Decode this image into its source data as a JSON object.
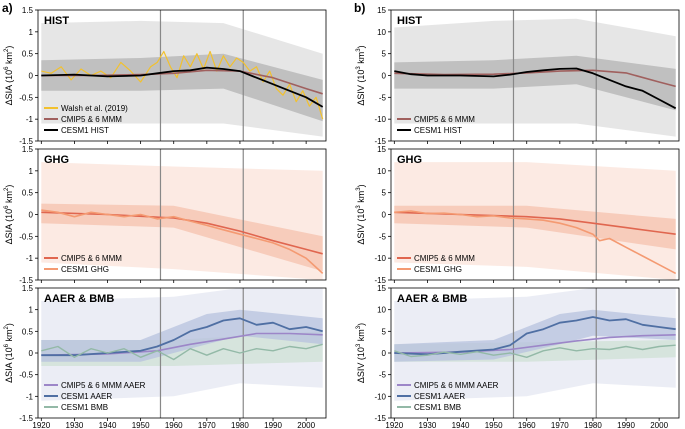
{
  "chart_data": {
    "type": "line",
    "column_labels": [
      "a)",
      "b)"
    ],
    "x_ticks": [
      1920,
      1930,
      1940,
      1950,
      1960,
      1970,
      1980,
      1990,
      2000
    ],
    "xlim": [
      1919,
      2006
    ],
    "vlines": [
      1956,
      1981
    ],
    "colors": {
      "walsh": "#f2c12e",
      "cmip_hist": "#a0605e",
      "cesm_hist": "#000000",
      "band_hist_dark": "#b3b3b3",
      "band_hist_light": "#dedede",
      "ghg_cmip": "#e0664f",
      "ghg_cesm": "#f49a72",
      "band_ghg_dark": "#f6c1ad",
      "band_ghg_light": "#fbe3da",
      "aer_cmip": "#9c86c8",
      "aer_cesm": "#4f6fa3",
      "bmb_cesm": "#93b9a7",
      "band_aer_dark": "#b7c2dd",
      "band_aer_light": "#e4e7f1",
      "band_bmb": "#cfe0d4",
      "vline": "#888888"
    },
    "columns": [
      {
        "ylabel_main": "ΔSIA",
        "units_base": "(10",
        "units_exp": "6",
        "units_unit": " km",
        "units_exp2": "2",
        "units_close": ")",
        "ylim": [
          -1.5,
          1.5
        ],
        "y_ticks": [
          -1.5,
          -1,
          -0.5,
          0,
          0.5,
          1,
          1.5
        ],
        "y_tick_labels": [
          "-1.5",
          "-1",
          "-0.5",
          "0",
          "0.5",
          "1",
          "1.5"
        ]
      },
      {
        "ylabel_main": "ΔSIV",
        "units_base": "(10",
        "units_exp": "3",
        "units_unit": " km",
        "units_exp2": "3",
        "units_close": ")",
        "ylim": [
          -15,
          15
        ],
        "y_ticks": [
          -15,
          -10,
          -5,
          0,
          5,
          10,
          15
        ],
        "y_tick_labels": [
          "-15",
          "-10",
          "-5",
          "0",
          "5",
          "10",
          "15"
        ]
      }
    ],
    "panels": [
      {
        "col": 0,
        "row": 0,
        "title": "HIST",
        "bands": [
          {
            "color": "band_hist_light",
            "x": [
              1920,
              1950,
              1975,
              2005
            ],
            "lower": [
              -1.1,
              -1.1,
              -1.1,
              -1.4
            ],
            "upper": [
              1.2,
              1.25,
              1.2,
              0.5
            ]
          },
          {
            "color": "band_hist_dark",
            "x": [
              1920,
              1950,
              1975,
              2005
            ],
            "lower": [
              -0.35,
              -0.35,
              -0.3,
              -1.05
            ],
            "upper": [
              0.35,
              0.4,
              0.5,
              -0.1
            ]
          }
        ],
        "series": [
          {
            "name": "Walsh et al. (2019)",
            "color": "walsh",
            "width": 1.2,
            "x": [
              1920,
              1923,
              1926,
              1929,
              1932,
              1935,
              1938,
              1941,
              1944,
              1947,
              1950,
              1953,
              1955,
              1957,
              1959,
              1961,
              1963,
              1965,
              1967,
              1969,
              1971,
              1973,
              1975,
              1977,
              1979,
              1981,
              1983,
              1985,
              1987,
              1989,
              1991,
              1993,
              1995,
              1997,
              1999,
              2001,
              2003,
              2005
            ],
            "y": [
              0.1,
              0.05,
              0.2,
              -0.1,
              0.15,
              0.0,
              0.1,
              -0.05,
              0.3,
              0.1,
              -0.15,
              0.2,
              0.3,
              0.55,
              0.2,
              -0.05,
              0.45,
              0.2,
              0.5,
              0.15,
              0.55,
              0.1,
              0.45,
              0.2,
              0.4,
              0.3,
              0.1,
              0.2,
              -0.15,
              0.1,
              -0.3,
              -0.45,
              -0.2,
              -0.6,
              -0.35,
              -0.7,
              -0.5,
              -1.0
            ]
          },
          {
            "name": "CMIP5 & 6 MMM",
            "color": "cmip_hist",
            "width": 1.6,
            "x": [
              1920,
              1935,
              1950,
              1960,
              1970,
              1980,
              1990,
              2000,
              2005
            ],
            "y": [
              0.0,
              0.0,
              0.02,
              0.05,
              0.12,
              0.1,
              -0.05,
              -0.3,
              -0.42
            ]
          },
          {
            "name": "CESM1 HIST",
            "color": "cesm_hist",
            "width": 1.8,
            "x": [
              1920,
              1930,
              1940,
              1950,
              1955,
              1960,
              1965,
              1970,
              1975,
              1980,
              1985,
              1990,
              1995,
              2000,
              2005
            ],
            "y": [
              0.0,
              0.02,
              -0.02,
              0.0,
              0.05,
              0.1,
              0.12,
              0.18,
              0.15,
              0.1,
              -0.05,
              -0.2,
              -0.35,
              -0.5,
              -0.72
            ]
          }
        ]
      },
      {
        "col": 1,
        "row": 0,
        "title": "HIST",
        "bands": [
          {
            "color": "band_hist_light",
            "x": [
              1920,
              1950,
              1975,
              2005
            ],
            "lower": [
              -11,
              -11,
              -11,
              -14
            ],
            "upper": [
              11,
              12.5,
              13,
              9
            ]
          },
          {
            "color": "band_hist_dark",
            "x": [
              1920,
              1950,
              1975,
              2005
            ],
            "lower": [
              -3,
              -3,
              -2,
              -8
            ],
            "upper": [
              3,
              3.5,
              4.5,
              1.5
            ]
          }
        ],
        "series": [
          {
            "name": "CMIP5 & 6 MMM",
            "color": "cmip_hist",
            "width": 1.6,
            "x": [
              1920,
              1935,
              1950,
              1960,
              1970,
              1980,
              1990,
              2000,
              2005
            ],
            "y": [
              0.5,
              0.2,
              0.3,
              0.6,
              1.0,
              1.2,
              0.6,
              -1.5,
              -2.5
            ]
          },
          {
            "name": "CESM1 HIST",
            "color": "cesm_hist",
            "width": 1.8,
            "x": [
              1920,
              1925,
              1930,
              1940,
              1950,
              1955,
              1960,
              1965,
              1970,
              1975,
              1980,
              1985,
              1990,
              1995,
              2000,
              2005
            ],
            "y": [
              1.0,
              0.3,
              0.0,
              0.0,
              -0.2,
              0.2,
              0.8,
              1.2,
              1.5,
              1.6,
              0.5,
              -1.0,
              -2.5,
              -3.5,
              -5.5,
              -7.5
            ]
          }
        ]
      },
      {
        "col": 0,
        "row": 1,
        "title": "GHG",
        "bands": [
          {
            "color": "band_ghg_light",
            "x": [
              1920,
              1960,
              2005
            ],
            "lower": [
              -1.1,
              -1.25,
              -1.5
            ],
            "upper": [
              1.2,
              1.1,
              1.0
            ]
          },
          {
            "color": "band_ghg_dark",
            "x": [
              1920,
              1960,
              2005
            ],
            "lower": [
              -0.2,
              -0.3,
              -1.3
            ],
            "upper": [
              0.25,
              0.2,
              -0.5
            ]
          }
        ],
        "series": [
          {
            "name": "CMIP5 & 6 MMM",
            "color": "ghg_cmip",
            "width": 1.6,
            "x": [
              1920,
              1940,
              1960,
              1970,
              1980,
              1990,
              2000,
              2005
            ],
            "y": [
              0.05,
              0.0,
              -0.08,
              -0.2,
              -0.38,
              -0.6,
              -0.8,
              -0.9
            ]
          },
          {
            "name": "CESM1 GHG",
            "color": "ghg_cesm",
            "width": 1.6,
            "x": [
              1920,
              1925,
              1930,
              1935,
              1940,
              1945,
              1950,
              1955,
              1960,
              1965,
              1970,
              1975,
              1980,
              1985,
              1990,
              1995,
              2000,
              2005
            ],
            "y": [
              0.1,
              0.05,
              -0.05,
              0.05,
              0.0,
              -0.05,
              0.0,
              -0.1,
              -0.05,
              -0.15,
              -0.25,
              -0.35,
              -0.45,
              -0.55,
              -0.65,
              -0.8,
              -1.0,
              -1.35
            ]
          }
        ]
      },
      {
        "col": 1,
        "row": 1,
        "title": "GHG",
        "bands": [
          {
            "color": "band_ghg_light",
            "x": [
              1920,
              1960,
              2005
            ],
            "lower": [
              -11,
              -12,
              -15
            ],
            "upper": [
              12,
              12,
              10
            ]
          },
          {
            "color": "band_ghg_dark",
            "x": [
              1920,
              1960,
              2005
            ],
            "lower": [
              -2,
              -3,
              -8
            ],
            "upper": [
              2,
              2,
              -1
            ]
          }
        ],
        "series": [
          {
            "name": "CMIP5 & 6 MMM",
            "color": "ghg_cmip",
            "width": 1.6,
            "x": [
              1920,
              1940,
              1960,
              1970,
              1980,
              1990,
              2000,
              2005
            ],
            "y": [
              0.5,
              0.0,
              -0.5,
              -1.0,
              -2.0,
              -3.0,
              -4.0,
              -4.5
            ]
          },
          {
            "name": "CESM1 GHG",
            "color": "ghg_cesm",
            "width": 1.6,
            "x": [
              1920,
              1925,
              1930,
              1935,
              1940,
              1945,
              1950,
              1955,
              1960,
              1965,
              1970,
              1975,
              1980,
              1982,
              1985,
              1990,
              1995,
              2000,
              2005
            ],
            "y": [
              0.5,
              0.8,
              0.2,
              0.3,
              0.0,
              -0.5,
              -0.3,
              -0.8,
              -1.0,
              -1.3,
              -2.0,
              -3.0,
              -4.5,
              -6.0,
              -5.5,
              -7.5,
              -9.5,
              -11.5,
              -13.5
            ]
          }
        ]
      },
      {
        "col": 0,
        "row": 2,
        "title": "AAER & BMB",
        "bands": [
          {
            "color": "band_aer_light",
            "x": [
              1920,
              1960,
              1980,
              2005
            ],
            "lower": [
              -1.1,
              -1.0,
              -0.7,
              -0.8
            ],
            "upper": [
              1.2,
              1.3,
              1.5,
              1.5
            ]
          },
          {
            "color": "band_bmb",
            "x": [
              1920,
              1960,
              2005
            ],
            "lower": [
              -0.3,
              -0.3,
              -0.2
            ],
            "upper": [
              0.3,
              0.3,
              0.5
            ]
          },
          {
            "color": "band_aer_dark",
            "x": [
              1920,
              1950,
              1970,
              1980,
              2005
            ],
            "lower": [
              -0.2,
              -0.2,
              0.2,
              0.4,
              0.2
            ],
            "upper": [
              0.3,
              0.3,
              0.9,
              1.0,
              0.8
            ]
          }
        ],
        "series": [
          {
            "name": "CMIP5 & 6 MMM AAER",
            "color": "aer_cmip",
            "width": 1.6,
            "x": [
              1920,
              1940,
              1955,
              1965,
              1975,
              1985,
              1995,
              2005
            ],
            "y": [
              -0.05,
              -0.02,
              0.05,
              0.2,
              0.32,
              0.45,
              0.45,
              0.42
            ]
          },
          {
            "name": "CESM1 AAER",
            "color": "aer_cesm",
            "width": 1.8,
            "x": [
              1920,
              1930,
              1940,
              1950,
              1955,
              1960,
              1965,
              1970,
              1975,
              1980,
              1985,
              1990,
              1995,
              2000,
              2005
            ],
            "y": [
              -0.05,
              -0.05,
              0.0,
              0.05,
              0.15,
              0.3,
              0.5,
              0.6,
              0.75,
              0.8,
              0.65,
              0.7,
              0.55,
              0.6,
              0.5
            ]
          },
          {
            "name": "CESM1 BMB",
            "color": "bmb_cesm",
            "width": 1.4,
            "x": [
              1920,
              1925,
              1930,
              1935,
              1940,
              1945,
              1950,
              1955,
              1960,
              1965,
              1970,
              1975,
              1980,
              1985,
              1990,
              1995,
              2000,
              2005
            ],
            "y": [
              0.05,
              0.15,
              -0.1,
              0.1,
              0.0,
              0.1,
              -0.1,
              0.05,
              -0.15,
              0.1,
              -0.05,
              0.1,
              0.0,
              0.1,
              0.05,
              0.15,
              0.1,
              0.2
            ]
          }
        ]
      },
      {
        "col": 1,
        "row": 2,
        "title": "AAER & BMB",
        "bands": [
          {
            "color": "band_aer_light",
            "x": [
              1920,
              1960,
              1980,
              2005
            ],
            "lower": [
              -11,
              -10,
              -7,
              -8
            ],
            "upper": [
              12,
              13,
              15,
              15
            ]
          },
          {
            "color": "band_bmb",
            "x": [
              1920,
              1960,
              2005
            ],
            "lower": [
              -2,
              -2,
              -1
            ],
            "upper": [
              2,
              2.5,
              3
            ]
          },
          {
            "color": "band_aer_dark",
            "x": [
              1920,
              1950,
              1970,
              1980,
              2005
            ],
            "lower": [
              -2,
              -1.5,
              2,
              4,
              3
            ],
            "upper": [
              2,
              3,
              9,
              10,
              8
            ]
          }
        ],
        "series": [
          {
            "name": "CMIP5 & 6 MMM AAER",
            "color": "aer_cmip",
            "width": 1.6,
            "x": [
              1920,
              1940,
              1955,
              1965,
              1975,
              1985,
              1995,
              2005
            ],
            "y": [
              0.0,
              0.2,
              0.8,
              1.8,
              2.8,
              3.6,
              4.0,
              4.2
            ]
          },
          {
            "name": "CESM1 AAER",
            "color": "aer_cesm",
            "width": 1.8,
            "x": [
              1920,
              1930,
              1940,
              1950,
              1955,
              1960,
              1965,
              1970,
              1975,
              1980,
              1985,
              1990,
              1995,
              2000,
              2005
            ],
            "y": [
              0.0,
              -0.3,
              0.3,
              0.8,
              1.8,
              4.5,
              5.5,
              7.0,
              7.5,
              8.3,
              7.5,
              7.8,
              6.5,
              6.0,
              5.5
            ]
          },
          {
            "name": "CESM1 BMB",
            "color": "bmb_cesm",
            "width": 1.4,
            "x": [
              1920,
              1925,
              1930,
              1935,
              1940,
              1945,
              1950,
              1955,
              1960,
              1965,
              1970,
              1975,
              1980,
              1985,
              1990,
              1995,
              2000,
              2005
            ],
            "y": [
              0.5,
              -0.8,
              -0.5,
              0.2,
              -0.3,
              0.3,
              -0.5,
              0.0,
              -1.0,
              0.5,
              1.2,
              0.5,
              1.0,
              0.8,
              1.5,
              0.8,
              1.5,
              1.8
            ]
          }
        ]
      }
    ]
  }
}
